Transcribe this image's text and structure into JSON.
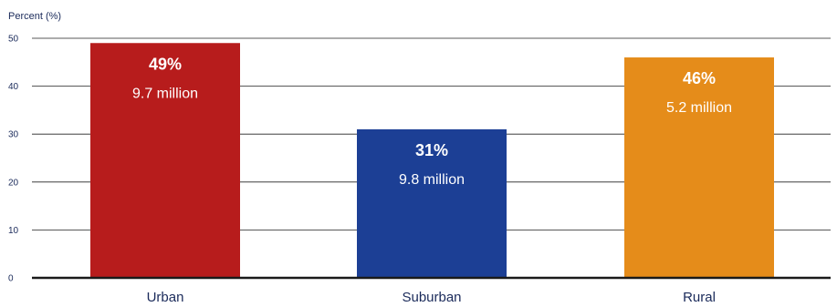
{
  "chart_data": {
    "type": "bar",
    "ylabel": "Percent (%)",
    "ylim": [
      0,
      50
    ],
    "yticks": [
      0,
      10,
      20,
      30,
      40,
      50
    ],
    "grid": true,
    "categories": [
      "Urban",
      "Suburban",
      "Rural"
    ],
    "values": [
      49,
      31,
      46
    ],
    "value_labels": [
      "49%",
      "31%",
      "46%"
    ],
    "sub_labels": [
      "9.7 million",
      "9.8 million",
      "5.2 million"
    ],
    "colors": [
      "#b71c1c",
      "#1c3f95",
      "#e58c1a"
    ]
  }
}
